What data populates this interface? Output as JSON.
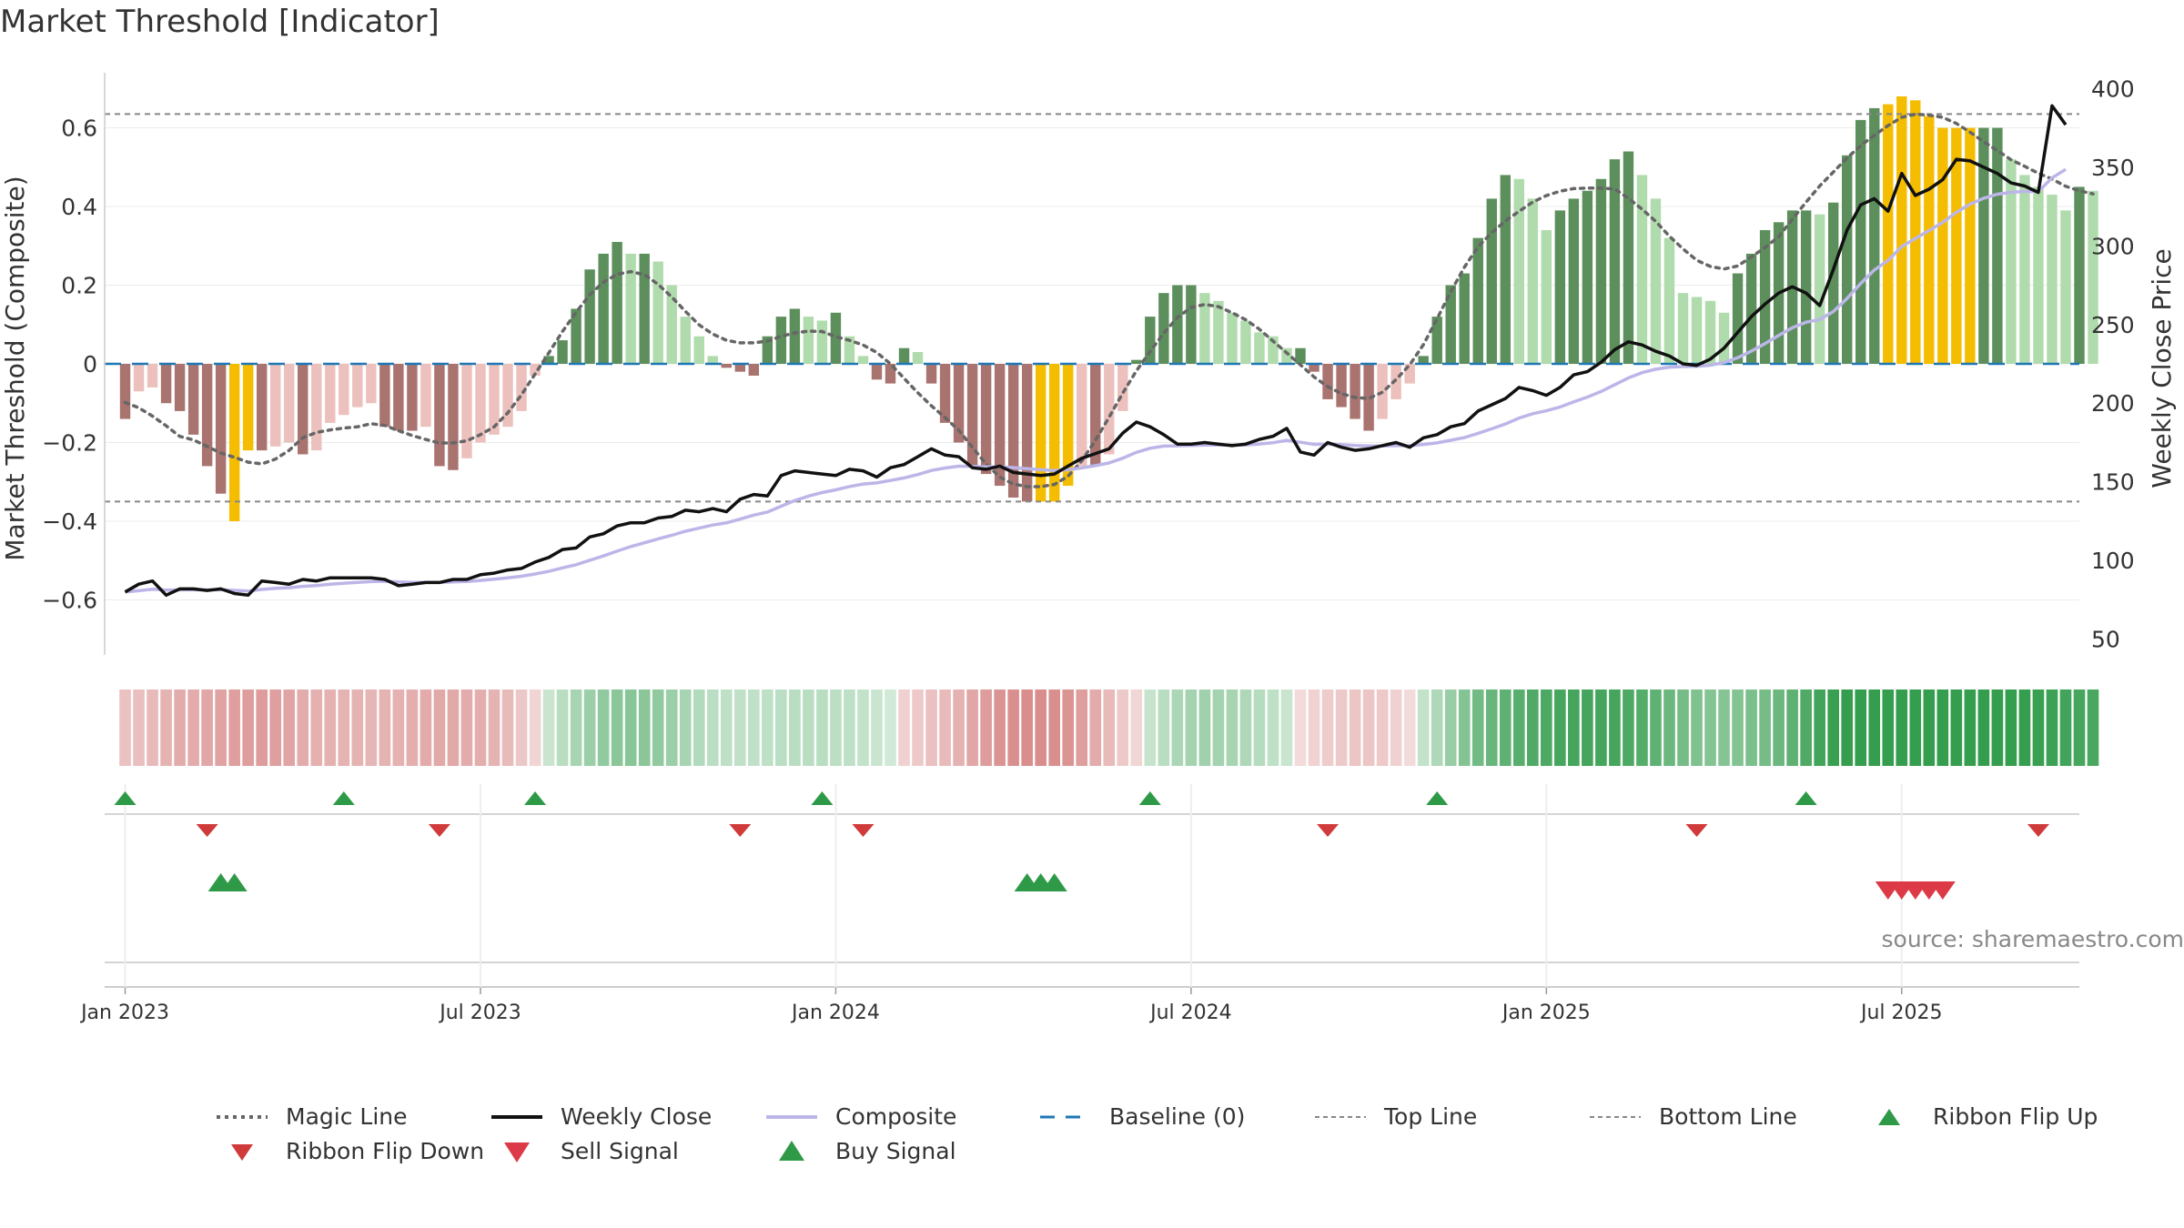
{
  "title": "Market Threshold [Indicator]",
  "source": "source: sharemaestro.com",
  "colors": {
    "ribbon_up": "#2e9a48",
    "buy_signal": "#2e9a48",
    "ribbon_down": "#d03a3a",
    "sell_signal": "#dd3a48",
    "highlight": "#f5bd00",
    "composite": "#bcb6e8",
    "close": "#111111",
    "magic": "#666666",
    "baseline": "#1f77b4"
  },
  "chart_data": {
    "type": "bar",
    "title": "Market Threshold [Indicator]",
    "ylabel": "Market Threshold (Composite)",
    "y2label": "Weekly Close Price",
    "ylim": [
      -0.74,
      0.74
    ],
    "y2lim": [
      40,
      410
    ],
    "yticks": [
      "0.6",
      "0.4",
      "0.2",
      "0",
      "−0.2",
      "−0.4",
      "−0.6"
    ],
    "yticks_values": [
      0.6,
      0.4,
      0.2,
      0,
      -0.2,
      -0.4,
      -0.6
    ],
    "y2ticks": [
      "400",
      "350",
      "300",
      "250",
      "200",
      "150",
      "100",
      "50"
    ],
    "y2ticks_values": [
      400,
      350,
      300,
      250,
      200,
      150,
      100,
      50
    ],
    "xlim": [
      -1.5,
      143
    ],
    "xticks": [
      "Jan 2023",
      "Jul 2023",
      "Jan 2024",
      "Jul 2024",
      "Jan 2025",
      "Jul 2025"
    ],
    "xticks_weeks": [
      0,
      26,
      52,
      78,
      104,
      130
    ],
    "top_line": 0.635,
    "bottom_line": -0.35,
    "baseline": 0,
    "legend_position": "bottom",
    "bars": [
      -0.14,
      -0.07,
      -0.06,
      -0.1,
      -0.12,
      -0.18,
      -0.26,
      -0.33,
      -0.4,
      -0.22,
      -0.22,
      -0.21,
      -0.2,
      -0.23,
      -0.22,
      -0.15,
      -0.13,
      -0.11,
      -0.1,
      -0.16,
      -0.17,
      -0.17,
      -0.16,
      -0.26,
      -0.27,
      -0.24,
      -0.2,
      -0.18,
      -0.16,
      -0.12,
      -0.03,
      0.02,
      0.06,
      0.14,
      0.24,
      0.28,
      0.31,
      0.28,
      0.28,
      0.26,
      0.2,
      0.12,
      0.07,
      0.02,
      -0.01,
      -0.02,
      -0.03,
      0.07,
      0.12,
      0.14,
      0.12,
      0.11,
      0.13,
      0.07,
      0.02,
      -0.04,
      -0.05,
      0.04,
      0.03,
      -0.05,
      -0.15,
      -0.2,
      -0.26,
      -0.28,
      -0.31,
      -0.34,
      -0.35,
      -0.35,
      -0.35,
      -0.31,
      -0.26,
      -0.26,
      -0.23,
      -0.12,
      0.01,
      0.12,
      0.18,
      0.2,
      0.2,
      0.18,
      0.16,
      0.13,
      0.11,
      0.08,
      0.07,
      0.04,
      0.04,
      -0.02,
      -0.09,
      -0.11,
      -0.14,
      -0.17,
      -0.14,
      -0.09,
      -0.05,
      0.02,
      0.12,
      0.2,
      0.23,
      0.32,
      0.42,
      0.48,
      0.47,
      0.42,
      0.34,
      0.39,
      0.42,
      0.44,
      0.47,
      0.52,
      0.54,
      0.48,
      0.42,
      0.32,
      0.18,
      0.17,
      0.16,
      0.13,
      0.23,
      0.28,
      0.34,
      0.36,
      0.39,
      0.39,
      0.38,
      0.41,
      0.53,
      0.62,
      0.65,
      0.66,
      0.68,
      0.67,
      0.63,
      0.6,
      0.6,
      0.6,
      0.6,
      0.6,
      0.52,
      0.48,
      0.45,
      0.43,
      0.39,
      0.45,
      0.44
    ],
    "highlight_weeks": [
      8,
      9,
      67,
      68,
      69,
      129,
      130,
      131,
      132,
      133,
      134,
      135
    ],
    "close": [
      80,
      85,
      87,
      78,
      82,
      82,
      81,
      82,
      79,
      78,
      87,
      86,
      85,
      88,
      87,
      89,
      89,
      89,
      89,
      88,
      84,
      85,
      86,
      86,
      88,
      88,
      91,
      92,
      94,
      95,
      99,
      102,
      107,
      108,
      115,
      117,
      122,
      124,
      124,
      127,
      128,
      132,
      131,
      133,
      131,
      139,
      142,
      141,
      154,
      157,
      156,
      155,
      154,
      158,
      157,
      153,
      159,
      161,
      166,
      171,
      167,
      166,
      159,
      158,
      160,
      156,
      155,
      154,
      155,
      160,
      165,
      168,
      171,
      181,
      188,
      185,
      180,
      174,
      174,
      175,
      174,
      173,
      174,
      177,
      179,
      184,
      169,
      167,
      175,
      172,
      170,
      171,
      173,
      175,
      172,
      178,
      180,
      185,
      187,
      195,
      199,
      203,
      210,
      208,
      205,
      210,
      218,
      220,
      226,
      234,
      239,
      237,
      233,
      230,
      225,
      224,
      228,
      235,
      245,
      255,
      263,
      270,
      274,
      270,
      262,
      285,
      310,
      326,
      330,
      322,
      346,
      332,
      336,
      342,
      355,
      354,
      350,
      346,
      340,
      338,
      334,
      389,
      377
    ]
  },
  "legend": {
    "magic_line": "Magic Line",
    "weekly_close": "Weekly Close",
    "composite": "Composite",
    "baseline": "Baseline (0)",
    "top_line": "Top Line",
    "bottom_line": "Bottom Line",
    "ribbon_flip_up": "Ribbon Flip Up",
    "ribbon_flip_down": "Ribbon Flip Down",
    "sell_signal": "Sell Signal",
    "buy_signal": "Buy Signal"
  },
  "signals": {
    "ribbon_flip_up_weeks": [
      0,
      16,
      30,
      51,
      75,
      96,
      123
    ],
    "ribbon_flip_down_weeks": [
      6,
      23,
      45,
      54,
      88,
      115,
      140
    ],
    "buy_signal_weeks": [
      7,
      8,
      66,
      67,
      68
    ],
    "sell_signal_weeks": [
      129,
      130,
      131,
      132,
      133
    ]
  }
}
